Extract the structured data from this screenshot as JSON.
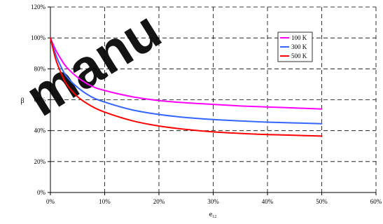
{
  "watermark": "manu",
  "chart_data": {
    "type": "line",
    "xlabel": "e",
    "xlabel_subscript": "12",
    "ylabel": "β",
    "xlim": [
      0,
      60
    ],
    "ylim": [
      0,
      120
    ],
    "xticks": [
      0,
      10,
      20,
      30,
      40,
      50,
      60
    ],
    "yticks": [
      0,
      20,
      40,
      60,
      80,
      100,
      120
    ],
    "xtick_labels": [
      "0%",
      "10%",
      "20%",
      "30%",
      "40%",
      "50%",
      "60%"
    ],
    "ytick_labels": [
      "0%",
      "20%",
      "40%",
      "60%",
      "80%",
      "100%",
      "120%"
    ],
    "grid": true,
    "legend_position": "top-right",
    "series": [
      {
        "name": "100 K",
        "color": "#ff00ff",
        "x": [
          0,
          1,
          2,
          3,
          5,
          7.5,
          10,
          15,
          20,
          25,
          30,
          35,
          40,
          45,
          50
        ],
        "y": [
          100,
          92,
          86,
          81,
          74.5,
          69,
          66,
          62,
          59.5,
          58,
          57,
          56,
          55.3,
          54.7,
          54
        ]
      },
      {
        "name": "300 K",
        "color": "#3366ff",
        "x": [
          0,
          1,
          2,
          3,
          5,
          7.5,
          10,
          15,
          20,
          25,
          30,
          35,
          40,
          45,
          50
        ],
        "y": [
          100,
          89,
          81,
          75,
          68,
          62,
          58.5,
          53.5,
          50.5,
          48.5,
          47.2,
          46.3,
          45.5,
          45,
          44.5
        ]
      },
      {
        "name": "500 K",
        "color": "#ff0000",
        "x": [
          0,
          1,
          2,
          3,
          5,
          7.5,
          10,
          15,
          20,
          25,
          30,
          35,
          40,
          45,
          50
        ],
        "y": [
          100,
          86,
          77,
          70,
          62,
          56,
          52,
          46.5,
          43,
          40.8,
          39.2,
          38.2,
          37.5,
          37,
          36.5
        ]
      }
    ]
  }
}
